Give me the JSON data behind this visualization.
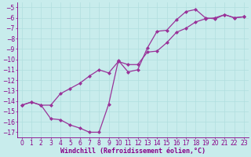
{
  "background_color": "#c8ecec",
  "grid_color": "#b0dede",
  "line_color": "#993399",
  "marker": "D",
  "marker_size": 2.0,
  "line_width": 0.9,
  "curve1_x": [
    0,
    1,
    2,
    3,
    4,
    5,
    6,
    7,
    8,
    9,
    10,
    11,
    12,
    13,
    14,
    15,
    16,
    17,
    18,
    19,
    20,
    21,
    22,
    23
  ],
  "curve1_y": [
    -14.4,
    -14.1,
    -14.4,
    -14.4,
    -13.3,
    -12.8,
    -12.3,
    -11.6,
    -11.0,
    -11.3,
    -10.2,
    -10.5,
    -10.5,
    -9.3,
    -9.2,
    -8.4,
    -7.4,
    -7.0,
    -6.4,
    -6.1,
    -6.0,
    -5.7,
    -6.0,
    -5.9
  ],
  "curve2_x": [
    0,
    1,
    2,
    3,
    4,
    5,
    6,
    7,
    8,
    9,
    10,
    11,
    12,
    13,
    14,
    15,
    16,
    17,
    18,
    19,
    20,
    21,
    22,
    23
  ],
  "curve2_y": [
    -14.4,
    -14.1,
    -14.4,
    -15.7,
    -15.8,
    -16.3,
    -16.6,
    -17.0,
    -17.0,
    -14.3,
    -10.1,
    -11.2,
    -11.0,
    -8.9,
    -7.3,
    -7.2,
    -6.2,
    -5.4,
    -5.2,
    -6.0,
    -6.1,
    -5.7,
    -6.0,
    -5.9
  ],
  "xlim": [
    -0.5,
    23.5
  ],
  "ylim": [
    -17.5,
    -4.5
  ],
  "yticks": [
    -5,
    -6,
    -7,
    -8,
    -9,
    -10,
    -11,
    -12,
    -13,
    -14,
    -15,
    -16,
    -17
  ],
  "xticks": [
    0,
    1,
    2,
    3,
    4,
    5,
    6,
    7,
    8,
    9,
    10,
    11,
    12,
    13,
    14,
    15,
    16,
    17,
    18,
    19,
    20,
    21,
    22,
    23
  ],
  "xlabel": "Windchill (Refroidissement éolien,°C)",
  "xlabel_fontsize": 6.0,
  "tick_fontsize": 5.5,
  "tick_color": "#880088",
  "spine_color": "#880088"
}
